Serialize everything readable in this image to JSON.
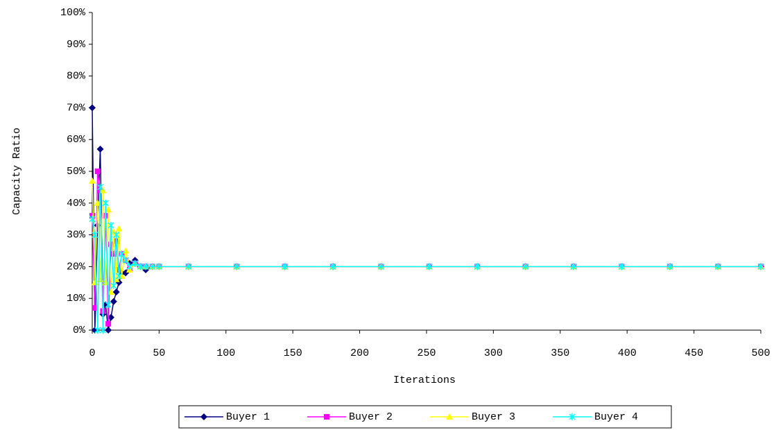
{
  "chart_data": {
    "type": "line",
    "x_label": "Iterations",
    "y_label": "Capacity Ratio",
    "x": [
      0,
      2,
      4,
      6,
      8,
      10,
      12,
      14,
      16,
      18,
      20,
      22,
      25,
      28,
      32,
      36,
      40,
      45,
      50,
      72,
      108,
      144,
      180,
      216,
      252,
      288,
      324,
      360,
      396,
      432,
      468,
      500
    ],
    "series": [
      {
        "name": "Buyer 1",
        "color": "#000080",
        "marker": "diamond",
        "values": [
          70,
          0,
          33,
          57,
          5,
          8,
          0,
          4,
          9,
          12,
          15,
          18,
          18,
          21,
          22,
          20,
          19,
          20,
          20,
          20,
          20,
          20,
          20,
          20,
          20,
          20,
          20,
          20,
          20,
          20,
          20,
          20
        ]
      },
      {
        "name": "Buyer 2",
        "color": "#ff00ff",
        "marker": "square",
        "values": [
          36,
          7,
          50,
          44,
          6,
          36,
          2,
          27,
          24,
          28,
          19,
          24,
          22,
          19,
          21,
          20,
          20,
          20,
          20,
          20,
          20,
          20,
          20,
          20,
          20,
          20,
          20,
          20,
          20,
          20,
          20,
          20
        ]
      },
      {
        "name": "Buyer 3",
        "color": "#ffff00",
        "marker": "triangle",
        "values": [
          47,
          15,
          40,
          16,
          44,
          15,
          38,
          12,
          31,
          16,
          32,
          17,
          25,
          19,
          21,
          20,
          20,
          20,
          20,
          20,
          20,
          20,
          20,
          20,
          20,
          20,
          20,
          20,
          20,
          20,
          20,
          20
        ]
      },
      {
        "name": "Buyer 4",
        "color": "#00ffff",
        "marker": "star",
        "values": [
          35,
          30,
          0,
          45,
          0,
          40,
          8,
          33,
          14,
          30,
          17,
          24,
          22,
          20,
          21,
          20,
          20,
          20,
          20,
          20,
          20,
          20,
          20,
          20,
          20,
          20,
          20,
          20,
          20,
          20,
          20,
          20
        ]
      }
    ],
    "xlim": [
      0,
      500
    ],
    "xticks": [
      0,
      50,
      100,
      150,
      200,
      250,
      300,
      350,
      400,
      450,
      500
    ],
    "ylim": [
      0,
      100
    ],
    "yticks": [
      {
        "value": 0,
        "label": "0%"
      },
      {
        "value": 10,
        "label": "10%"
      },
      {
        "value": 20,
        "label": "20%"
      },
      {
        "value": 30,
        "label": "30%"
      },
      {
        "value": 40,
        "label": "40%"
      },
      {
        "value": 50,
        "label": "50%"
      },
      {
        "value": 60,
        "label": "60%"
      },
      {
        "value": 70,
        "label": "70%"
      },
      {
        "value": 80,
        "label": "80%"
      },
      {
        "value": 90,
        "label": "90%"
      },
      {
        "value": 100,
        "label": "100%"
      }
    ],
    "grid": false,
    "legend": "bottom"
  }
}
